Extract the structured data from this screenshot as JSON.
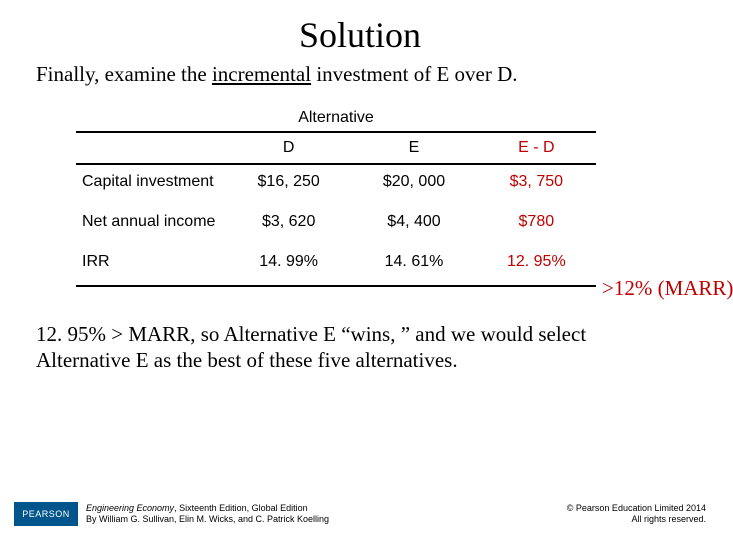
{
  "title": "Solution",
  "intro_prefix": "Finally, examine the ",
  "intro_underlined": "incremental",
  "intro_suffix": " investment of E over D.",
  "alternative_label": "Alternative",
  "columns": {
    "c0": "",
    "c1": "D",
    "c2": "E",
    "c3": "E - D"
  },
  "rows": [
    {
      "label": "Capital investment",
      "d": "$16, 250",
      "e": "$20, 000",
      "ed": "$3, 750"
    },
    {
      "label": "Net annual income",
      "d": "$3, 620",
      "e": "$4, 400",
      "ed": "$780"
    },
    {
      "label": "IRR",
      "d": "14. 99%",
      "e": "14. 61%",
      "ed": "12. 95%"
    }
  ],
  "annotation": ">12% (MARR)",
  "conclusion": "12. 95% > MARR, so Alternative E “wins, ” and we would select Alternative E as the best of these five alternatives.",
  "footer": {
    "logo": "PEARSON",
    "book_title": "Engineering Economy",
    "edition": ", Sixteenth Edition, Global Edition",
    "authors": "By William G. Sullivan, Elin M. Wicks, and C. Patrick Koelling",
    "copyright": "© Pearson Education Limited 2014",
    "rights": "All rights reserved."
  },
  "colors": {
    "accent_red": "#c00000",
    "logo_bg": "#00558c"
  }
}
